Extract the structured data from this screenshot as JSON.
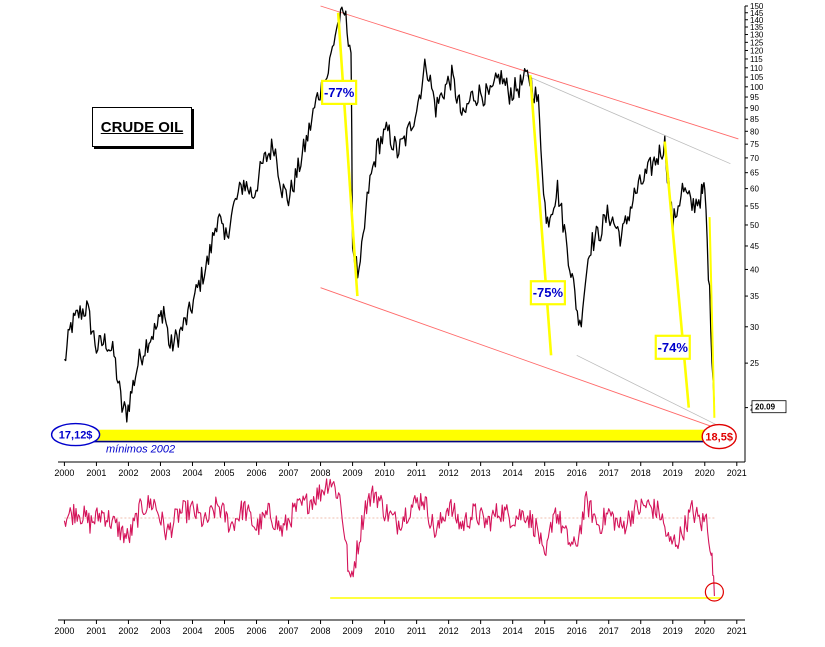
{
  "chart_data": [
    {
      "type": "line",
      "title": "CRUDE OIL",
      "y_scale": "log",
      "ylim": [
        17,
        150
      ],
      "xlim": [
        1999.8,
        2021.1
      ],
      "x_ticks": [
        "2000",
        "2001",
        "2002",
        "2003",
        "2004",
        "2005",
        "2006",
        "2007",
        "2008",
        "2009",
        "2010",
        "2011",
        "2012",
        "2013",
        "2014",
        "2015",
        "2016",
        "2017",
        "2018",
        "2019",
        "2020",
        "2021"
      ],
      "y_ticks": [
        20,
        25,
        30,
        35,
        40,
        45,
        50,
        55,
        60,
        65,
        70,
        75,
        80,
        85,
        90,
        95,
        100,
        105,
        110,
        115,
        120,
        125,
        130,
        135,
        140,
        145,
        150
      ],
      "last_value_label": "20.09",
      "series": [
        {
          "x": [
            2000.0,
            2000.2,
            2000.45,
            2000.7,
            2001.0,
            2001.3,
            2001.55,
            2001.8,
            2001.95,
            2002.3,
            2002.6,
            2002.9,
            2003.1,
            2003.3,
            2003.6,
            2003.9,
            2004.2,
            2004.5,
            2004.8,
            2005.0,
            2005.3,
            2005.6,
            2005.9,
            2006.2,
            2006.55,
            2006.8,
            2007.0,
            2007.3,
            2007.6,
            2007.9,
            2008.2,
            2008.5,
            2008.75,
            2008.95,
            2009.0,
            2009.2,
            2009.5,
            2009.8,
            2010.1,
            2010.4,
            2010.7,
            2011.0,
            2011.3,
            2011.6,
            2011.9,
            2012.1,
            2012.45,
            2012.7,
            2013.0,
            2013.3,
            2013.6,
            2013.9,
            2014.2,
            2014.5,
            2014.8,
            2015.05,
            2015.4,
            2015.7,
            2016.1,
            2016.4,
            2016.7,
            2017.0,
            2017.4,
            2017.8,
            2018.1,
            2018.5,
            2018.75,
            2019.0,
            2019.3,
            2019.6,
            2019.9,
            2020.0,
            2020.15,
            2020.3
          ],
          "y": [
            25,
            30,
            32,
            33,
            27,
            28,
            26,
            20,
            19.5,
            25,
            28,
            30,
            33,
            27,
            29,
            32,
            37,
            42,
            53,
            46,
            55,
            62,
            58,
            68,
            75,
            60,
            57,
            66,
            78,
            95,
            105,
            135,
            145,
            120,
            45,
            38,
            60,
            75,
            80,
            72,
            78,
            90,
            113,
            90,
            100,
            105,
            85,
            95,
            97,
            95,
            106,
            97,
            100,
            106,
            92,
            50,
            60,
            45,
            30,
            45,
            48,
            53,
            47,
            58,
            63,
            70,
            75,
            50,
            60,
            55,
            58,
            60,
            35,
            20.1
          ]
        }
      ],
      "annotations": {
        "drops": [
          "-77%",
          "-75%",
          "-74%"
        ],
        "low_left_label": "17,12$",
        "low_right_label": "18,5$",
        "support_label": "mínimos 2002"
      }
    },
    {
      "type": "line",
      "xlim": [
        1999.8,
        2021.1
      ],
      "x_ticks": [
        "2000",
        "2001",
        "2002",
        "2003",
        "2004",
        "2005",
        "2006",
        "2007",
        "2008",
        "2009",
        "2010",
        "2011",
        "2012",
        "2013",
        "2014",
        "2015",
        "2016",
        "2017",
        "2018",
        "2019",
        "2020",
        "2021"
      ],
      "series": [
        {
          "x": [
            2000.0,
            2000.4,
            2000.8,
            2001.2,
            2001.6,
            2002.0,
            2002.4,
            2002.8,
            2003.2,
            2003.6,
            2004.0,
            2004.4,
            2004.8,
            2005.2,
            2005.6,
            2006.0,
            2006.4,
            2006.8,
            2007.2,
            2007.6,
            2008.0,
            2008.3,
            2008.6,
            2008.8,
            2008.9,
            2009.1,
            2009.4,
            2009.7,
            2010.0,
            2010.4,
            2010.8,
            2011.2,
            2011.6,
            2012.0,
            2012.4,
            2012.8,
            2013.2,
            2013.6,
            2014.0,
            2014.4,
            2014.8,
            2015.0,
            2015.3,
            2015.7,
            2015.95,
            2016.3,
            2016.7,
            2017.0,
            2017.4,
            2017.8,
            2018.2,
            2018.6,
            2018.9,
            2019.2,
            2019.6,
            2019.9,
            2020.05,
            2020.2,
            2020.3
          ],
          "y": [
            0,
            3,
            -2,
            2,
            -3,
            -8,
            4,
            6,
            -6,
            2,
            3,
            -2,
            5,
            -3,
            4,
            -4,
            2,
            -5,
            3,
            6,
            10,
            15,
            8,
            -10,
            -25,
            -15,
            5,
            10,
            3,
            -2,
            4,
            8,
            -6,
            5,
            -3,
            2,
            -2,
            3,
            0,
            2,
            -5,
            -18,
            4,
            -8,
            -12,
            6,
            -3,
            2,
            -4,
            3,
            5,
            2,
            -10,
            -8,
            3,
            -2,
            0,
            -12,
            -30
          ]
        }
      ]
    }
  ]
}
